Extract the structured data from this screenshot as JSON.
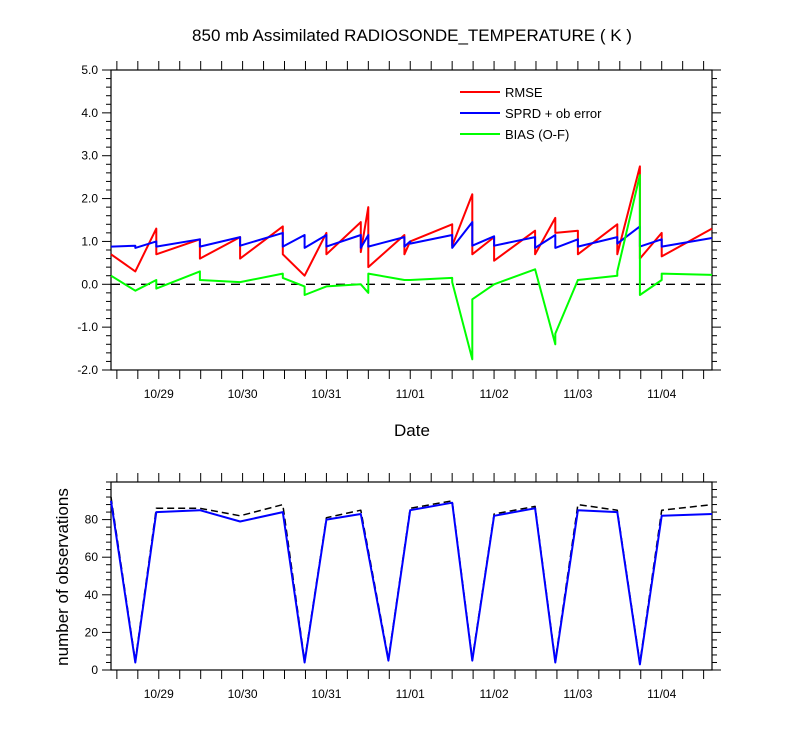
{
  "chart_data": [
    {
      "type": "line",
      "title": "850 mb Assimilated RADIOSONDE_TEMPERATURE ( K )",
      "xlabel": "Date",
      "ylabel": "",
      "ylim": [
        -2.0,
        5.0
      ],
      "xlim": [
        10.43,
        17.6
      ],
      "yticks": [
        -2.0,
        -1.0,
        0.0,
        1.0,
        2.0,
        3.0,
        4.0,
        5.0
      ],
      "ytick_labels": [
        "-2.0",
        "-1.0",
        "0.0",
        "1.0",
        "2.0",
        "3.0",
        "4.0",
        "5.0"
      ],
      "xtick_labels": [
        "10/29",
        "10/30",
        "10/31",
        "11/01",
        "11/02",
        "11/03",
        "11/04"
      ],
      "zero_line": true,
      "legend_position": "top-right",
      "series": [
        {
          "name": "RMSE",
          "color": "#ff0000",
          "x": [
            10.43,
            10.72,
            10.72,
            10.97,
            10.97,
            11.49,
            11.49,
            11.97,
            11.97,
            12.48,
            12.48,
            12.74,
            12.74,
            13.0,
            13.0,
            13.41,
            13.41,
            13.5,
            13.5,
            13.93,
            13.93,
            14.0,
            14.0,
            14.5,
            14.5,
            14.74,
            14.74,
            15.0,
            15.0,
            15.49,
            15.49,
            15.73,
            15.73,
            16.0,
            16.0,
            16.47,
            16.47,
            16.74,
            16.74,
            17.0,
            17.0,
            17.6
          ],
          "y": [
            0.7,
            0.3,
            0.3,
            1.3,
            0.7,
            1.05,
            0.6,
            1.1,
            0.6,
            1.35,
            0.7,
            0.2,
            0.2,
            1.2,
            0.7,
            1.45,
            0.75,
            1.8,
            0.4,
            1.15,
            0.7,
            1.0,
            1.0,
            1.4,
            0.9,
            2.1,
            0.7,
            1.1,
            0.55,
            1.25,
            0.7,
            1.55,
            1.2,
            1.25,
            0.7,
            1.4,
            0.7,
            2.75,
            0.6,
            1.2,
            0.65,
            1.3
          ]
        },
        {
          "name": "SPRD + ob error",
          "color": "#0000ff",
          "x": [
            10.43,
            10.72,
            10.72,
            10.97,
            10.97,
            11.49,
            11.49,
            11.97,
            11.97,
            12.48,
            12.48,
            12.74,
            12.74,
            13.0,
            13.0,
            13.41,
            13.41,
            13.5,
            13.5,
            13.93,
            13.93,
            14.0,
            14.0,
            14.5,
            14.5,
            14.74,
            14.74,
            15.0,
            15.0,
            15.49,
            15.49,
            15.73,
            15.73,
            16.0,
            16.0,
            16.47,
            16.47,
            16.74,
            16.74,
            17.0,
            17.0,
            17.6
          ],
          "y": [
            0.88,
            0.9,
            0.85,
            1.0,
            0.88,
            1.05,
            0.88,
            1.1,
            0.9,
            1.2,
            0.88,
            1.15,
            0.85,
            1.15,
            0.88,
            1.15,
            0.85,
            1.15,
            0.88,
            1.1,
            0.88,
            1.0,
            0.95,
            1.15,
            0.85,
            1.45,
            0.9,
            1.12,
            0.9,
            1.1,
            0.85,
            1.15,
            0.85,
            1.05,
            0.88,
            1.1,
            0.95,
            1.35,
            0.88,
            1.05,
            0.88,
            1.08
          ]
        },
        {
          "name": "BIAS (O-F)",
          "color": "#00ff00",
          "x": [
            10.43,
            10.72,
            10.72,
            10.97,
            10.97,
            11.49,
            11.49,
            11.97,
            11.97,
            12.48,
            12.48,
            12.74,
            12.74,
            13.0,
            13.0,
            13.41,
            13.41,
            13.5,
            13.5,
            13.93,
            13.93,
            14.0,
            14.0,
            14.5,
            14.5,
            14.74,
            14.74,
            15.0,
            15.0,
            15.49,
            15.49,
            15.73,
            15.73,
            16.0,
            16.0,
            16.47,
            16.47,
            16.74,
            16.74,
            17.0,
            17.0,
            17.6
          ],
          "y": [
            0.2,
            -0.15,
            -0.15,
            0.1,
            -0.1,
            0.3,
            0.1,
            0.05,
            0.05,
            0.25,
            0.15,
            -0.05,
            -0.25,
            -0.05,
            -0.05,
            0.0,
            0.0,
            -0.2,
            0.25,
            0.1,
            0.1,
            0.1,
            0.1,
            0.15,
            0.05,
            -1.75,
            -0.35,
            0.0,
            0.0,
            0.35,
            0.35,
            -1.4,
            -1.15,
            0.1,
            0.1,
            0.2,
            0.3,
            2.55,
            -0.25,
            0.1,
            0.25,
            0.22
          ]
        }
      ]
    },
    {
      "type": "line",
      "title": "",
      "xlabel": "",
      "ylabel": "number of observations",
      "ylim": [
        0,
        100
      ],
      "xlim": [
        10.43,
        17.6
      ],
      "yticks": [
        0,
        20,
        40,
        60,
        80
      ],
      "ytick_labels": [
        "0",
        "20",
        "40",
        "60",
        "80"
      ],
      "xtick_labels": [
        "10/29",
        "10/30",
        "10/31",
        "11/01",
        "11/02",
        "11/03",
        "11/04"
      ],
      "series": [
        {
          "color": "#000000",
          "dashed": true,
          "x": [
            10.43,
            10.72,
            10.97,
            11.49,
            11.97,
            12.48,
            12.74,
            13.0,
            13.41,
            13.74,
            14.0,
            14.5,
            14.74,
            15.0,
            15.49,
            15.73,
            16.0,
            16.47,
            16.74,
            17.0,
            17.6
          ],
          "y": [
            92,
            5,
            86,
            86,
            82,
            88,
            5,
            81,
            85,
            6,
            86,
            90,
            6,
            83,
            87,
            5,
            88,
            85,
            4,
            85,
            88
          ]
        },
        {
          "color": "#0000ff",
          "x": [
            10.43,
            10.72,
            10.97,
            11.49,
            11.97,
            12.48,
            12.74,
            13.0,
            13.41,
            13.74,
            14.0,
            14.5,
            14.74,
            15.0,
            15.49,
            15.73,
            16.0,
            16.47,
            16.74,
            17.0,
            17.6
          ],
          "y": [
            90,
            4,
            84,
            85,
            79,
            84,
            4,
            80,
            83,
            5,
            85,
            89,
            5,
            82,
            86,
            4,
            85,
            84,
            3,
            82,
            83
          ]
        }
      ]
    }
  ]
}
